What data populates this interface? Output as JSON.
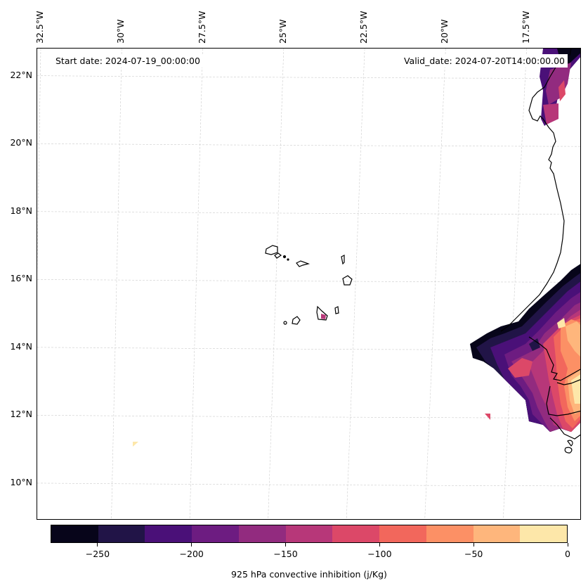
{
  "chart_data": {
    "type": "heatmap",
    "title": "",
    "map_type": "filled contour map",
    "projection_extent": {
      "lon_min": -32.5,
      "lon_max": -15.8,
      "lat_min": 8.9,
      "lat_max": 22.8
    },
    "lon_ticks": [
      {
        "value": -32.5,
        "label": "32.5°W"
      },
      {
        "value": -30.0,
        "label": "30°W"
      },
      {
        "value": -27.5,
        "label": "27.5°W"
      },
      {
        "value": -25.0,
        "label": "25°W"
      },
      {
        "value": -22.5,
        "label": "22.5°W"
      },
      {
        "value": -20.0,
        "label": "20°W"
      },
      {
        "value": -17.5,
        "label": "17.5°W"
      }
    ],
    "lat_ticks": [
      {
        "value": 22,
        "label": "22°N"
      },
      {
        "value": 20,
        "label": "20°N"
      },
      {
        "value": 18,
        "label": "18°N"
      },
      {
        "value": 16,
        "label": "16°N"
      },
      {
        "value": 14,
        "label": "14°N"
      },
      {
        "value": 12,
        "label": "12°N"
      },
      {
        "value": 10,
        "label": "10°N"
      }
    ],
    "grid": true,
    "annotations": {
      "start_date": "Start date: 2024-07-19_00:00:00",
      "valid_date": "Valid_date: 2024-07-20T14:00:00.00"
    },
    "colorbar": {
      "label": "925 hPa convective inhibition (j/Kg)",
      "range": [
        -275,
        0
      ],
      "levels": [
        -275,
        -250,
        -225,
        -200,
        -175,
        -150,
        -125,
        -100,
        -75,
        -50,
        -25,
        0
      ],
      "colors": [
        "#07051a",
        "#211447",
        "#4a1078",
        "#6d1c81",
        "#922b7f",
        "#b73779",
        "#dc4868",
        "#f2675c",
        "#fc9065",
        "#feb67c",
        "#fde7a9"
      ],
      "ticks": [
        {
          "value": -250,
          "label": "−250"
        },
        {
          "value": -200,
          "label": "−200"
        },
        {
          "value": -150,
          "label": "−150"
        },
        {
          "value": -100,
          "label": "−100"
        },
        {
          "value": -50,
          "label": "−50"
        },
        {
          "value": 0,
          "label": "0"
        }
      ],
      "placement": "bottom"
    },
    "features": [
      {
        "name": "Cape Verde islands",
        "type": "coastline"
      },
      {
        "name": "West African coast (Mauritania, Senegal, Gambia, Guinea-Bissau)",
        "type": "coastline"
      },
      {
        "name": "CIN field over Senegal/Gambia",
        "min_value": -275,
        "max_value": 0
      },
      {
        "name": "CIN field off northern Mauritania coast",
        "min_value": -275,
        "max_value": -100
      },
      {
        "name": "Santiago island patch",
        "value": -137
      },
      {
        "name": "Isolated small patch near 30.5°W 11°N",
        "value": -12
      }
    ]
  }
}
